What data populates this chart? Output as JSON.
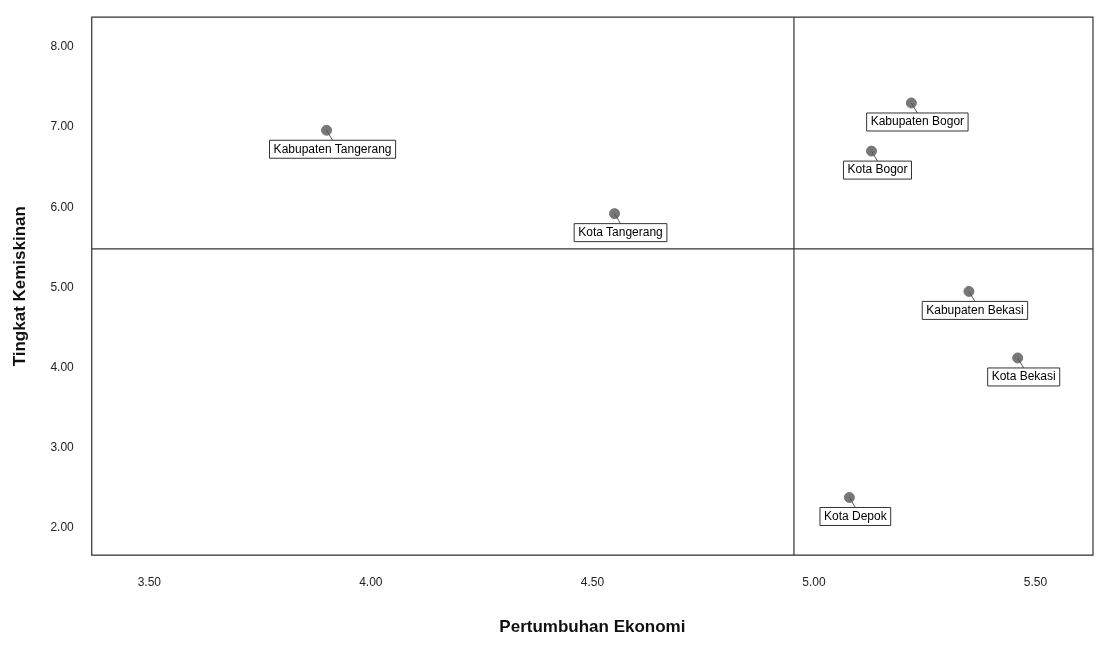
{
  "chart_data": {
    "type": "scatter",
    "xlabel": "Pertumbuhan Ekonomi",
    "ylabel": "Tingkat Kemiskinan",
    "x": [
      3.9,
      4.55,
      5.22,
      5.13,
      5.35,
      5.46,
      5.08
    ],
    "values": [
      6.96,
      5.92,
      7.3,
      6.7,
      4.95,
      4.12,
      2.38
    ],
    "color": "#777777",
    "marker": "circle",
    "grid": false,
    "legend": false,
    "xlim": [
      3.37,
      5.63
    ],
    "ylim": [
      1.66,
      8.37
    ],
    "xticks": [
      {
        "value": 3.5,
        "label": "3.50"
      },
      {
        "value": 4,
        "label": "4.00"
      },
      {
        "value": 4.5,
        "label": "4.50"
      },
      {
        "value": 5,
        "label": "5.00"
      },
      {
        "value": 5.5,
        "label": "5.50"
      }
    ],
    "yticks": [
      {
        "value": 2,
        "label": "2.00"
      },
      {
        "value": 3,
        "label": "3.00"
      },
      {
        "value": 4,
        "label": "4.00"
      },
      {
        "value": 5,
        "label": "5.00"
      },
      {
        "value": 6,
        "label": "6.00"
      },
      {
        "value": 7,
        "label": "7.00"
      },
      {
        "value": 8,
        "label": "8.00"
      }
    ],
    "ref_lines": [
      {
        "axis": "x",
        "value": 4.955,
        "color": "#333333"
      },
      {
        "axis": "y",
        "value": 5.48,
        "color": "#333333"
      }
    ],
    "annotations": [
      {
        "text": "Kabupaten Tangerang",
        "x": 3.9,
        "y": 6.96
      },
      {
        "text": "Kota Tangerang",
        "x": 4.55,
        "y": 5.92
      },
      {
        "text": "Kabupaten Bogor",
        "x": 5.22,
        "y": 7.3
      },
      {
        "text": "Kota Bogor",
        "x": 5.13,
        "y": 6.7
      },
      {
        "text": "Kabupaten Bekasi",
        "x": 5.35,
        "y": 4.95
      },
      {
        "text": "Kota Bekasi",
        "x": 5.46,
        "y": 4.12
      },
      {
        "text": "Kota Depok",
        "x": 5.08,
        "y": 2.38
      }
    ]
  }
}
